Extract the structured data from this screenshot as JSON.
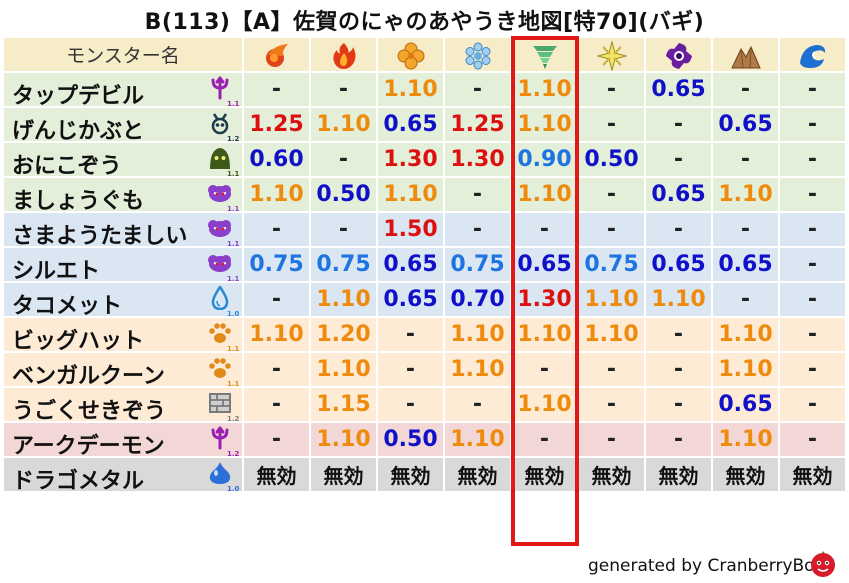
{
  "title": "B(113)【A】佐賀のにゃのあやうき地図[特70](バギ)",
  "header_label": "モンスター名",
  "element_icons": [
    "fire-ball-icon",
    "flame-icon",
    "clover-icon",
    "ice-icon",
    "tornado-icon",
    "spark-icon",
    "dark-vortex-icon",
    "rock-mountain-icon",
    "water-wave-icon"
  ],
  "highlighted_column": "tornado-icon",
  "footer": "generated by CranberryBot",
  "monsters": [
    {
      "name": "タップデビル",
      "icon": "trident-icon",
      "icon_color": "#9b1fb0",
      "scale": "1.1",
      "row": "green",
      "values": [
        {
          "t": "-",
          "c": "dash"
        },
        {
          "t": "-",
          "c": "dash"
        },
        {
          "t": "1.10",
          "c": "orange"
        },
        {
          "t": "-",
          "c": "dash"
        },
        {
          "t": "1.10",
          "c": "orange"
        },
        {
          "t": "-",
          "c": "dash"
        },
        {
          "t": "0.65",
          "c": "navy"
        },
        {
          "t": "-",
          "c": "dash"
        },
        {
          "t": "-",
          "c": "dash"
        }
      ]
    },
    {
      "name": "げんじかぶと",
      "icon": "beetle-icon",
      "icon_color": "#1c3b4a",
      "scale": "1.2",
      "row": "green",
      "values": [
        {
          "t": "1.25",
          "c": "red"
        },
        {
          "t": "1.10",
          "c": "orange"
        },
        {
          "t": "0.65",
          "c": "navy"
        },
        {
          "t": "1.25",
          "c": "red"
        },
        {
          "t": "1.10",
          "c": "orange"
        },
        {
          "t": "-",
          "c": "dash"
        },
        {
          "t": "-",
          "c": "dash"
        },
        {
          "t": "0.65",
          "c": "navy"
        },
        {
          "t": "-",
          "c": "dash"
        }
      ]
    },
    {
      "name": "おにこぞう",
      "icon": "hooded-ghost-icon",
      "icon_color": "#3d5a1a",
      "scale": "1.1",
      "row": "green",
      "values": [
        {
          "t": "0.60",
          "c": "navy"
        },
        {
          "t": "-",
          "c": "dash"
        },
        {
          "t": "1.30",
          "c": "red"
        },
        {
          "t": "1.30",
          "c": "red"
        },
        {
          "t": "0.90",
          "c": "blue"
        },
        {
          "t": "0.50",
          "c": "navy"
        },
        {
          "t": "-",
          "c": "dash"
        },
        {
          "t": "-",
          "c": "dash"
        },
        {
          "t": "-",
          "c": "dash"
        }
      ]
    },
    {
      "name": "ましょうぐも",
      "icon": "purple-cloud-icon",
      "icon_color": "#8a3ec9",
      "scale": "1.1",
      "row": "green",
      "values": [
        {
          "t": "1.10",
          "c": "orange"
        },
        {
          "t": "0.50",
          "c": "navy"
        },
        {
          "t": "1.10",
          "c": "orange"
        },
        {
          "t": "-",
          "c": "dash"
        },
        {
          "t": "1.10",
          "c": "orange"
        },
        {
          "t": "-",
          "c": "dash"
        },
        {
          "t": "0.65",
          "c": "navy"
        },
        {
          "t": "1.10",
          "c": "orange"
        },
        {
          "t": "-",
          "c": "dash"
        }
      ]
    },
    {
      "name": "さまようたましい",
      "icon": "purple-cloud-icon",
      "icon_color": "#8a3ec9",
      "scale": "1.1",
      "row": "blue",
      "values": [
        {
          "t": "-",
          "c": "dash"
        },
        {
          "t": "-",
          "c": "dash"
        },
        {
          "t": "1.50",
          "c": "red"
        },
        {
          "t": "-",
          "c": "dash"
        },
        {
          "t": "-",
          "c": "dash"
        },
        {
          "t": "-",
          "c": "dash"
        },
        {
          "t": "-",
          "c": "dash"
        },
        {
          "t": "-",
          "c": "dash"
        },
        {
          "t": "-",
          "c": "dash"
        }
      ]
    },
    {
      "name": "シルエト",
      "icon": "purple-cloud-icon",
      "icon_color": "#8a3ec9",
      "scale": "1.1",
      "row": "blue",
      "values": [
        {
          "t": "0.75",
          "c": "blue"
        },
        {
          "t": "0.75",
          "c": "blue"
        },
        {
          "t": "0.65",
          "c": "navy"
        },
        {
          "t": "0.75",
          "c": "blue"
        },
        {
          "t": "0.65",
          "c": "navy"
        },
        {
          "t": "0.75",
          "c": "blue"
        },
        {
          "t": "0.65",
          "c": "navy"
        },
        {
          "t": "0.65",
          "c": "navy"
        },
        {
          "t": "-",
          "c": "dash"
        }
      ]
    },
    {
      "name": "タコメット",
      "icon": "water-drop-icon",
      "icon_color": "#2a8ad6",
      "scale": "1.0",
      "row": "blue",
      "values": [
        {
          "t": "-",
          "c": "dash"
        },
        {
          "t": "1.10",
          "c": "orange"
        },
        {
          "t": "0.65",
          "c": "navy"
        },
        {
          "t": "0.70",
          "c": "navy"
        },
        {
          "t": "1.30",
          "c": "red"
        },
        {
          "t": "1.10",
          "c": "orange"
        },
        {
          "t": "1.10",
          "c": "orange"
        },
        {
          "t": "-",
          "c": "dash"
        },
        {
          "t": "-",
          "c": "dash"
        }
      ]
    },
    {
      "name": "ビッグハット",
      "icon": "paw-icon",
      "icon_color": "#e08a1a",
      "scale": "1.1",
      "row": "peach",
      "values": [
        {
          "t": "1.10",
          "c": "orange"
        },
        {
          "t": "1.20",
          "c": "orange"
        },
        {
          "t": "-",
          "c": "dash"
        },
        {
          "t": "1.10",
          "c": "orange"
        },
        {
          "t": "1.10",
          "c": "orange"
        },
        {
          "t": "1.10",
          "c": "orange"
        },
        {
          "t": "-",
          "c": "dash"
        },
        {
          "t": "1.10",
          "c": "orange"
        },
        {
          "t": "-",
          "c": "dash"
        }
      ]
    },
    {
      "name": "ベンガルクーン",
      "icon": "paw-icon",
      "icon_color": "#e08a1a",
      "scale": "1.1",
      "row": "peach",
      "values": [
        {
          "t": "-",
          "c": "dash"
        },
        {
          "t": "1.10",
          "c": "orange"
        },
        {
          "t": "-",
          "c": "dash"
        },
        {
          "t": "1.10",
          "c": "orange"
        },
        {
          "t": "-",
          "c": "dash"
        },
        {
          "t": "-",
          "c": "dash"
        },
        {
          "t": "-",
          "c": "dash"
        },
        {
          "t": "1.10",
          "c": "orange"
        },
        {
          "t": "-",
          "c": "dash"
        }
      ]
    },
    {
      "name": "うごくせきぞう",
      "icon": "brick-wall-icon",
      "icon_color": "#7a7a7a",
      "scale": "1.2",
      "row": "peach",
      "values": [
        {
          "t": "-",
          "c": "dash"
        },
        {
          "t": "1.15",
          "c": "orange"
        },
        {
          "t": "-",
          "c": "dash"
        },
        {
          "t": "-",
          "c": "dash"
        },
        {
          "t": "1.10",
          "c": "orange"
        },
        {
          "t": "-",
          "c": "dash"
        },
        {
          "t": "-",
          "c": "dash"
        },
        {
          "t": "0.65",
          "c": "navy"
        },
        {
          "t": "-",
          "c": "dash"
        }
      ]
    },
    {
      "name": "アークデーモン",
      "icon": "trident-icon",
      "icon_color": "#9b1fb0",
      "scale": "1.2",
      "row": "pink",
      "values": [
        {
          "t": "-",
          "c": "dash"
        },
        {
          "t": "1.10",
          "c": "orange"
        },
        {
          "t": "0.50",
          "c": "navy"
        },
        {
          "t": "1.10",
          "c": "orange"
        },
        {
          "t": "-",
          "c": "dash"
        },
        {
          "t": "-",
          "c": "dash"
        },
        {
          "t": "-",
          "c": "dash"
        },
        {
          "t": "1.10",
          "c": "orange"
        },
        {
          "t": "-",
          "c": "dash"
        }
      ]
    },
    {
      "name": "ドラゴメタル",
      "icon": "metal-slime-icon",
      "icon_color": "#2c6fd8",
      "scale": "1.0",
      "row": "gray",
      "values": [
        {
          "t": "無効",
          "c": "void"
        },
        {
          "t": "無効",
          "c": "void"
        },
        {
          "t": "無効",
          "c": "void"
        },
        {
          "t": "無効",
          "c": "void"
        },
        {
          "t": "無効",
          "c": "void"
        },
        {
          "t": "無効",
          "c": "void"
        },
        {
          "t": "無効",
          "c": "void"
        },
        {
          "t": "無効",
          "c": "void"
        },
        {
          "t": "無効",
          "c": "void"
        }
      ]
    }
  ],
  "colors": {
    "red": "#dd1010",
    "orange": "#ee8a0c",
    "navy": "#1010c8",
    "blue": "#1e74e0",
    "highlight": "#e01818",
    "bg_green": "#e3efd9",
    "bg_blue": "#dbe6f3",
    "bg_peach": "#fdebd6",
    "bg_pink": "#f3d7d7",
    "bg_gray": "#d9d9d9",
    "header_bg": "#f7ecc8"
  }
}
